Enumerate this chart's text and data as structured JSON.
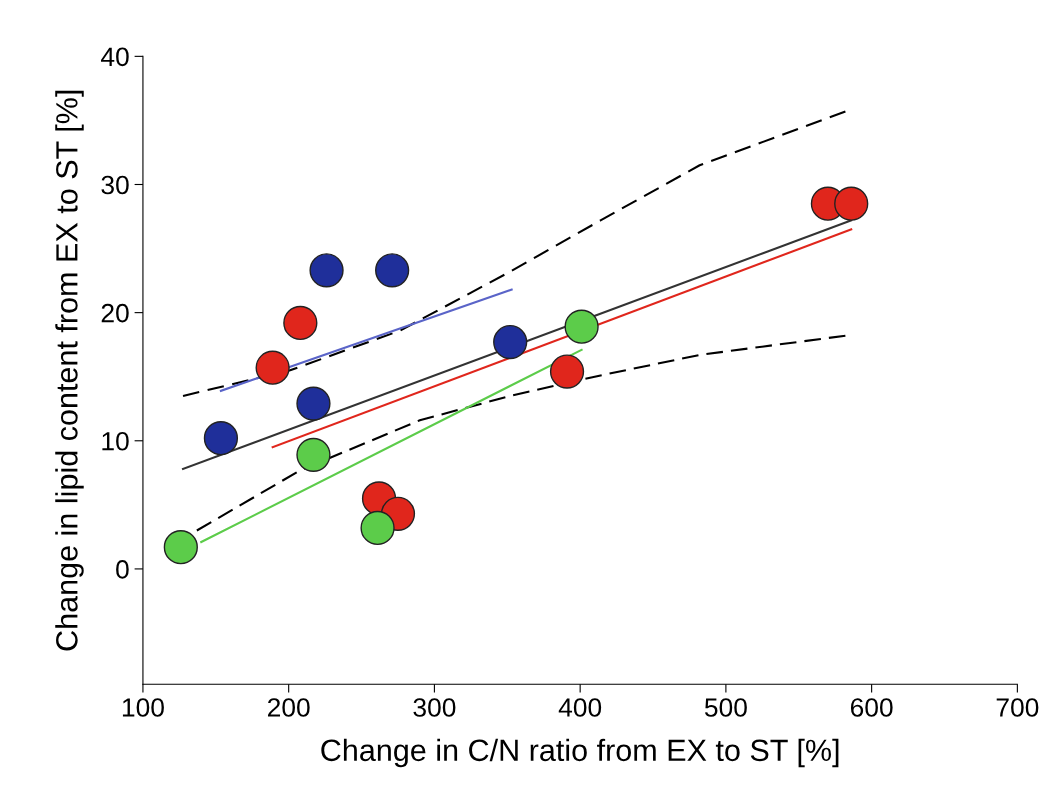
{
  "chart_data": {
    "type": "scatter",
    "xlabel": "Change in C/N ratio from EX to ST [%]",
    "ylabel": "Change in lipid content from EX to ST [%]",
    "xlim": [
      100,
      700
    ],
    "xticks": [
      100,
      200,
      300,
      400,
      500,
      600,
      700
    ],
    "ylim": [
      -9,
      40
    ],
    "yticks": [
      0,
      10,
      20,
      30,
      40
    ],
    "grid": false,
    "legend": false,
    "marker": "circle",
    "series": [
      {
        "type": "line",
        "color": "#000000",
        "line_style": "dashed",
        "marker": "none",
        "x": [
          127.5,
          201,
          276.5,
          352,
          414,
          482,
          582
        ],
        "values": [
          13.5,
          15.5,
          18.6,
          23.2,
          27.2,
          31.5,
          35.7
        ]
      },
      {
        "type": "line",
        "color": "#000000",
        "line_style": "dashed",
        "marker": "none",
        "x": [
          137,
          208,
          290,
          352,
          414,
          482,
          582
        ],
        "values": [
          3.0,
          7.7,
          11.6,
          13.5,
          15.1,
          16.7,
          18.2
        ]
      },
      {
        "type": "line",
        "color": "#333333",
        "line_style": "solid",
        "marker": "none",
        "x": [
          127.5,
          586
        ],
        "values": [
          7.8,
          27.2
        ]
      },
      {
        "type": "line",
        "color": "#e0261c",
        "line_style": "solid",
        "marker": "none",
        "x": [
          189,
          586
        ],
        "values": [
          9.5,
          26.5
        ]
      },
      {
        "type": "line",
        "color": "#5ccc4a",
        "line_style": "solid",
        "marker": "none",
        "x": [
          140,
          401
        ],
        "values": [
          2.1,
          17.1
        ]
      },
      {
        "type": "line",
        "color": "#5a64c8",
        "line_style": "solid",
        "marker": "none",
        "x": [
          153.5,
          353
        ],
        "values": [
          13.9,
          21.8
        ]
      },
      {
        "color": "#1f2f9a",
        "x": [
          153.5,
          226,
          271,
          217,
          352
        ],
        "values": [
          10.2,
          23.3,
          23.3,
          12.9,
          17.7
        ]
      },
      {
        "color": "#e0261c",
        "x": [
          208,
          189,
          262,
          275,
          391,
          570,
          586
        ],
        "values": [
          19.2,
          15.7,
          5.5,
          4.3,
          15.4,
          28.5,
          28.5
        ]
      },
      {
        "color": "#5ccc4a",
        "x": [
          126,
          217,
          261,
          401
        ],
        "values": [
          1.7,
          8.9,
          3.2,
          18.9
        ]
      }
    ]
  }
}
